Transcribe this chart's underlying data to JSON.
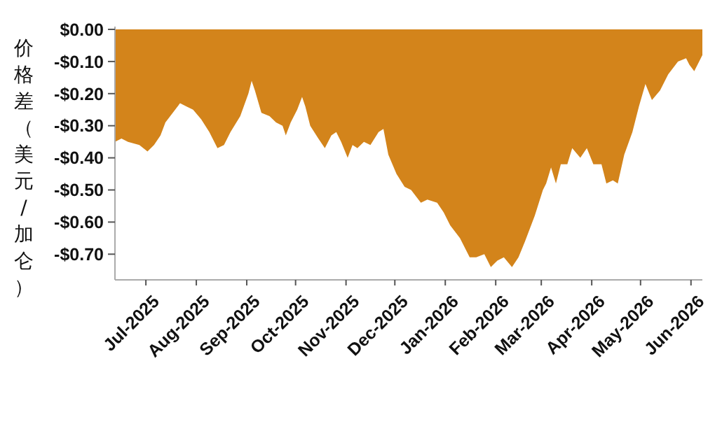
{
  "chart_data": {
    "type": "area",
    "ylabel": "价格差（美元/加仑）",
    "color": "#d3841b",
    "x": [
      "2025-06-12",
      "2025-06-16",
      "2025-06-20",
      "2025-06-27",
      "2025-07-02",
      "2025-07-06",
      "2025-07-10",
      "2025-07-13",
      "2025-07-19",
      "2025-07-22",
      "2025-07-26",
      "2025-07-30",
      "2025-08-04",
      "2025-08-09",
      "2025-08-14",
      "2025-08-18",
      "2025-08-22",
      "2025-08-28",
      "2025-09-02",
      "2025-09-04",
      "2025-09-06",
      "2025-09-10",
      "2025-09-15",
      "2025-09-19",
      "2025-09-23",
      "2025-09-25",
      "2025-09-28",
      "2025-10-02",
      "2025-10-05",
      "2025-10-07",
      "2025-10-10",
      "2025-10-15",
      "2025-10-19",
      "2025-10-23",
      "2025-10-26",
      "2025-10-29",
      "2025-11-02",
      "2025-11-05",
      "2025-11-08",
      "2025-11-12",
      "2025-11-16",
      "2025-11-21",
      "2025-11-24",
      "2025-11-27",
      "2025-12-02",
      "2025-12-07",
      "2025-12-11",
      "2025-12-17",
      "2025-12-21",
      "2025-12-27",
      "2025-12-31",
      "2026-01-04",
      "2026-01-10",
      "2026-01-16",
      "2026-01-20",
      "2026-01-25",
      "2026-01-29",
      "2026-02-02",
      "2026-02-06",
      "2026-02-11",
      "2026-02-15",
      "2026-02-19",
      "2026-02-25",
      "2026-03-02",
      "2026-03-04",
      "2026-03-07",
      "2026-03-10",
      "2026-03-13",
      "2026-03-17",
      "2026-03-20",
      "2026-03-25",
      "2026-03-29",
      "2026-04-02",
      "2026-04-07",
      "2026-04-10",
      "2026-04-14",
      "2026-04-17",
      "2026-04-21",
      "2026-04-26",
      "2026-04-30",
      "2026-05-04",
      "2026-05-08",
      "2026-05-13",
      "2026-05-18",
      "2026-05-24",
      "2026-05-29",
      "2026-05-31",
      "2026-06-03",
      "2026-06-06",
      "2026-06-08"
    ],
    "values": [
      -0.35,
      -0.34,
      -0.35,
      -0.36,
      -0.38,
      -0.36,
      -0.33,
      -0.29,
      -0.25,
      -0.23,
      -0.24,
      -0.25,
      -0.28,
      -0.32,
      -0.37,
      -0.36,
      -0.32,
      -0.27,
      -0.2,
      -0.16,
      -0.19,
      -0.26,
      -0.27,
      -0.29,
      -0.3,
      -0.33,
      -0.29,
      -0.25,
      -0.21,
      -0.24,
      -0.3,
      -0.34,
      -0.37,
      -0.33,
      -0.32,
      -0.35,
      -0.4,
      -0.36,
      -0.37,
      -0.35,
      -0.36,
      -0.32,
      -0.31,
      -0.39,
      -0.45,
      -0.49,
      -0.5,
      -0.54,
      -0.53,
      -0.54,
      -0.57,
      -0.61,
      -0.65,
      -0.71,
      -0.71,
      -0.7,
      -0.74,
      -0.72,
      -0.71,
      -0.74,
      -0.71,
      -0.66,
      -0.58,
      -0.5,
      -0.48,
      -0.43,
      -0.48,
      -0.42,
      -0.42,
      -0.37,
      -0.4,
      -0.37,
      -0.42,
      -0.42,
      -0.48,
      -0.47,
      -0.48,
      -0.39,
      -0.32,
      -0.24,
      -0.17,
      -0.22,
      -0.19,
      -0.14,
      -0.1,
      -0.09,
      -0.11,
      -0.13,
      -0.1,
      -0.08
    ],
    "xlim": [
      "2025-06-12",
      "2026-06-08"
    ],
    "xticks": [
      {
        "value": "2025-07-01",
        "label": "Jul-2025"
      },
      {
        "value": "2025-08-01",
        "label": "Aug-2025"
      },
      {
        "value": "2025-09-01",
        "label": "Sep-2025"
      },
      {
        "value": "2025-10-01",
        "label": "Oct-2025"
      },
      {
        "value": "2025-11-01",
        "label": "Nov-2025"
      },
      {
        "value": "2025-12-01",
        "label": "Dec-2025"
      },
      {
        "value": "2026-01-01",
        "label": "Jan-2026"
      },
      {
        "value": "2026-02-01",
        "label": "Feb-2026"
      },
      {
        "value": "2026-03-01",
        "label": "Mar-2026"
      },
      {
        "value": "2026-04-01",
        "label": "Apr-2026"
      },
      {
        "value": "2026-05-01",
        "label": "May-2026"
      },
      {
        "value": "2026-06-01",
        "label": "Jun-2026"
      }
    ],
    "ylim": [
      -0.78,
      0
    ],
    "yticks": [
      {
        "value": 0,
        "label": "$0.00"
      },
      {
        "value": -0.1,
        "label": "-$0.10"
      },
      {
        "value": -0.2,
        "label": "-$0.20"
      },
      {
        "value": -0.3,
        "label": "-$0.30"
      },
      {
        "value": -0.4,
        "label": "-$0.40"
      },
      {
        "value": -0.5,
        "label": "-$0.50"
      },
      {
        "value": -0.6,
        "label": "-$0.60"
      },
      {
        "value": -0.7,
        "label": "-$0.70"
      }
    ],
    "grid": false
  }
}
